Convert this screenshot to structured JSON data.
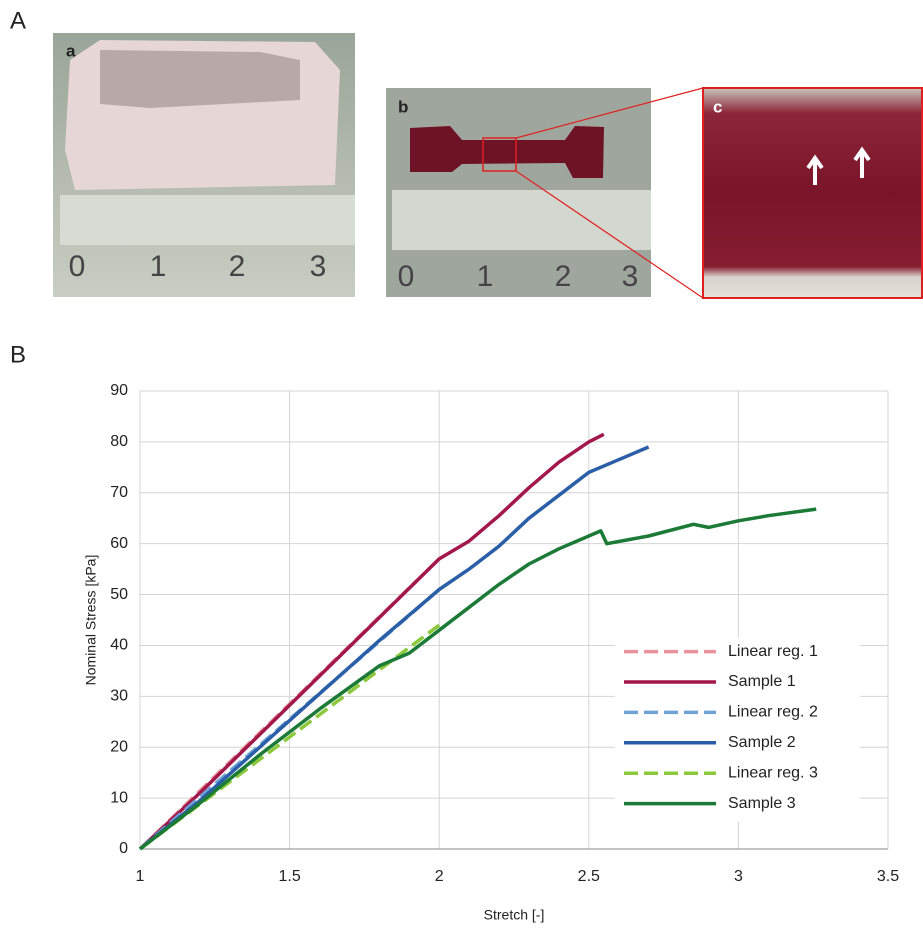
{
  "figure_labels": [
    "A",
    "B"
  ],
  "photos": [
    {
      "label": "a",
      "ruler": [
        "0",
        "1",
        "2",
        "3"
      ]
    },
    {
      "label": "b",
      "ruler": [
        "0",
        "1",
        "2",
        "3"
      ]
    },
    {
      "label": "c"
    }
  ],
  "chart_data": {
    "type": "line",
    "x_label": "Stretch [-]",
    "y_label": "Nominal Stress [kPa]",
    "xlim": [
      1,
      3.5
    ],
    "ylim": [
      0,
      90
    ],
    "xticks": [
      1,
      1.5,
      2,
      2.5,
      3,
      3.5
    ],
    "yticks": [
      0,
      10,
      20,
      30,
      40,
      50,
      60,
      70,
      80,
      90
    ],
    "grid": true,
    "legend": "lower right",
    "series": [
      {
        "name": "Linear reg. 1",
        "color": "#e8939b",
        "dashed": true,
        "x": [
          1,
          2
        ],
        "values": [
          0,
          57
        ]
      },
      {
        "name": "Sample 1",
        "color": "#a3184a",
        "dashed": false,
        "x": [
          1,
          1.1,
          1.2,
          1.4,
          1.6,
          1.8,
          2.0,
          2.1,
          2.2,
          2.3,
          2.4,
          2.5,
          2.55
        ],
        "values": [
          0,
          5.5,
          11,
          22.5,
          34,
          45.5,
          57,
          60.5,
          65.5,
          71,
          76,
          80,
          81.5
        ]
      },
      {
        "name": "Linear reg. 2",
        "color": "#6fa3d6",
        "dashed": true,
        "x": [
          1,
          2
        ],
        "values": [
          0,
          51
        ]
      },
      {
        "name": "Sample 2",
        "color": "#2a5fa8",
        "dashed": false,
        "x": [
          1,
          1.2,
          1.4,
          1.6,
          1.8,
          2.0,
          2.1,
          2.2,
          2.3,
          2.4,
          2.5,
          2.6,
          2.7
        ],
        "values": [
          0,
          9.5,
          20,
          30.5,
          41,
          51,
          55,
          59.5,
          65,
          69.5,
          74,
          76.5,
          79
        ]
      },
      {
        "name": "Linear reg. 3",
        "color": "#8cc83c",
        "dashed": true,
        "x": [
          1,
          2
        ],
        "values": [
          0,
          44
        ]
      },
      {
        "name": "Sample 3",
        "color": "#1a7a36",
        "dashed": false,
        "x": [
          1,
          1.2,
          1.4,
          1.6,
          1.8,
          1.9,
          2.0,
          2.1,
          2.2,
          2.3,
          2.4,
          2.54,
          2.56,
          2.7,
          2.85,
          2.9,
          3.0,
          3.1,
          3.26
        ],
        "values": [
          0,
          9,
          18.5,
          27.5,
          36,
          38.5,
          43,
          47.5,
          52,
          56,
          59,
          62.5,
          60,
          61.5,
          63.8,
          63.2,
          64.5,
          65.5,
          66.8
        ]
      }
    ]
  }
}
